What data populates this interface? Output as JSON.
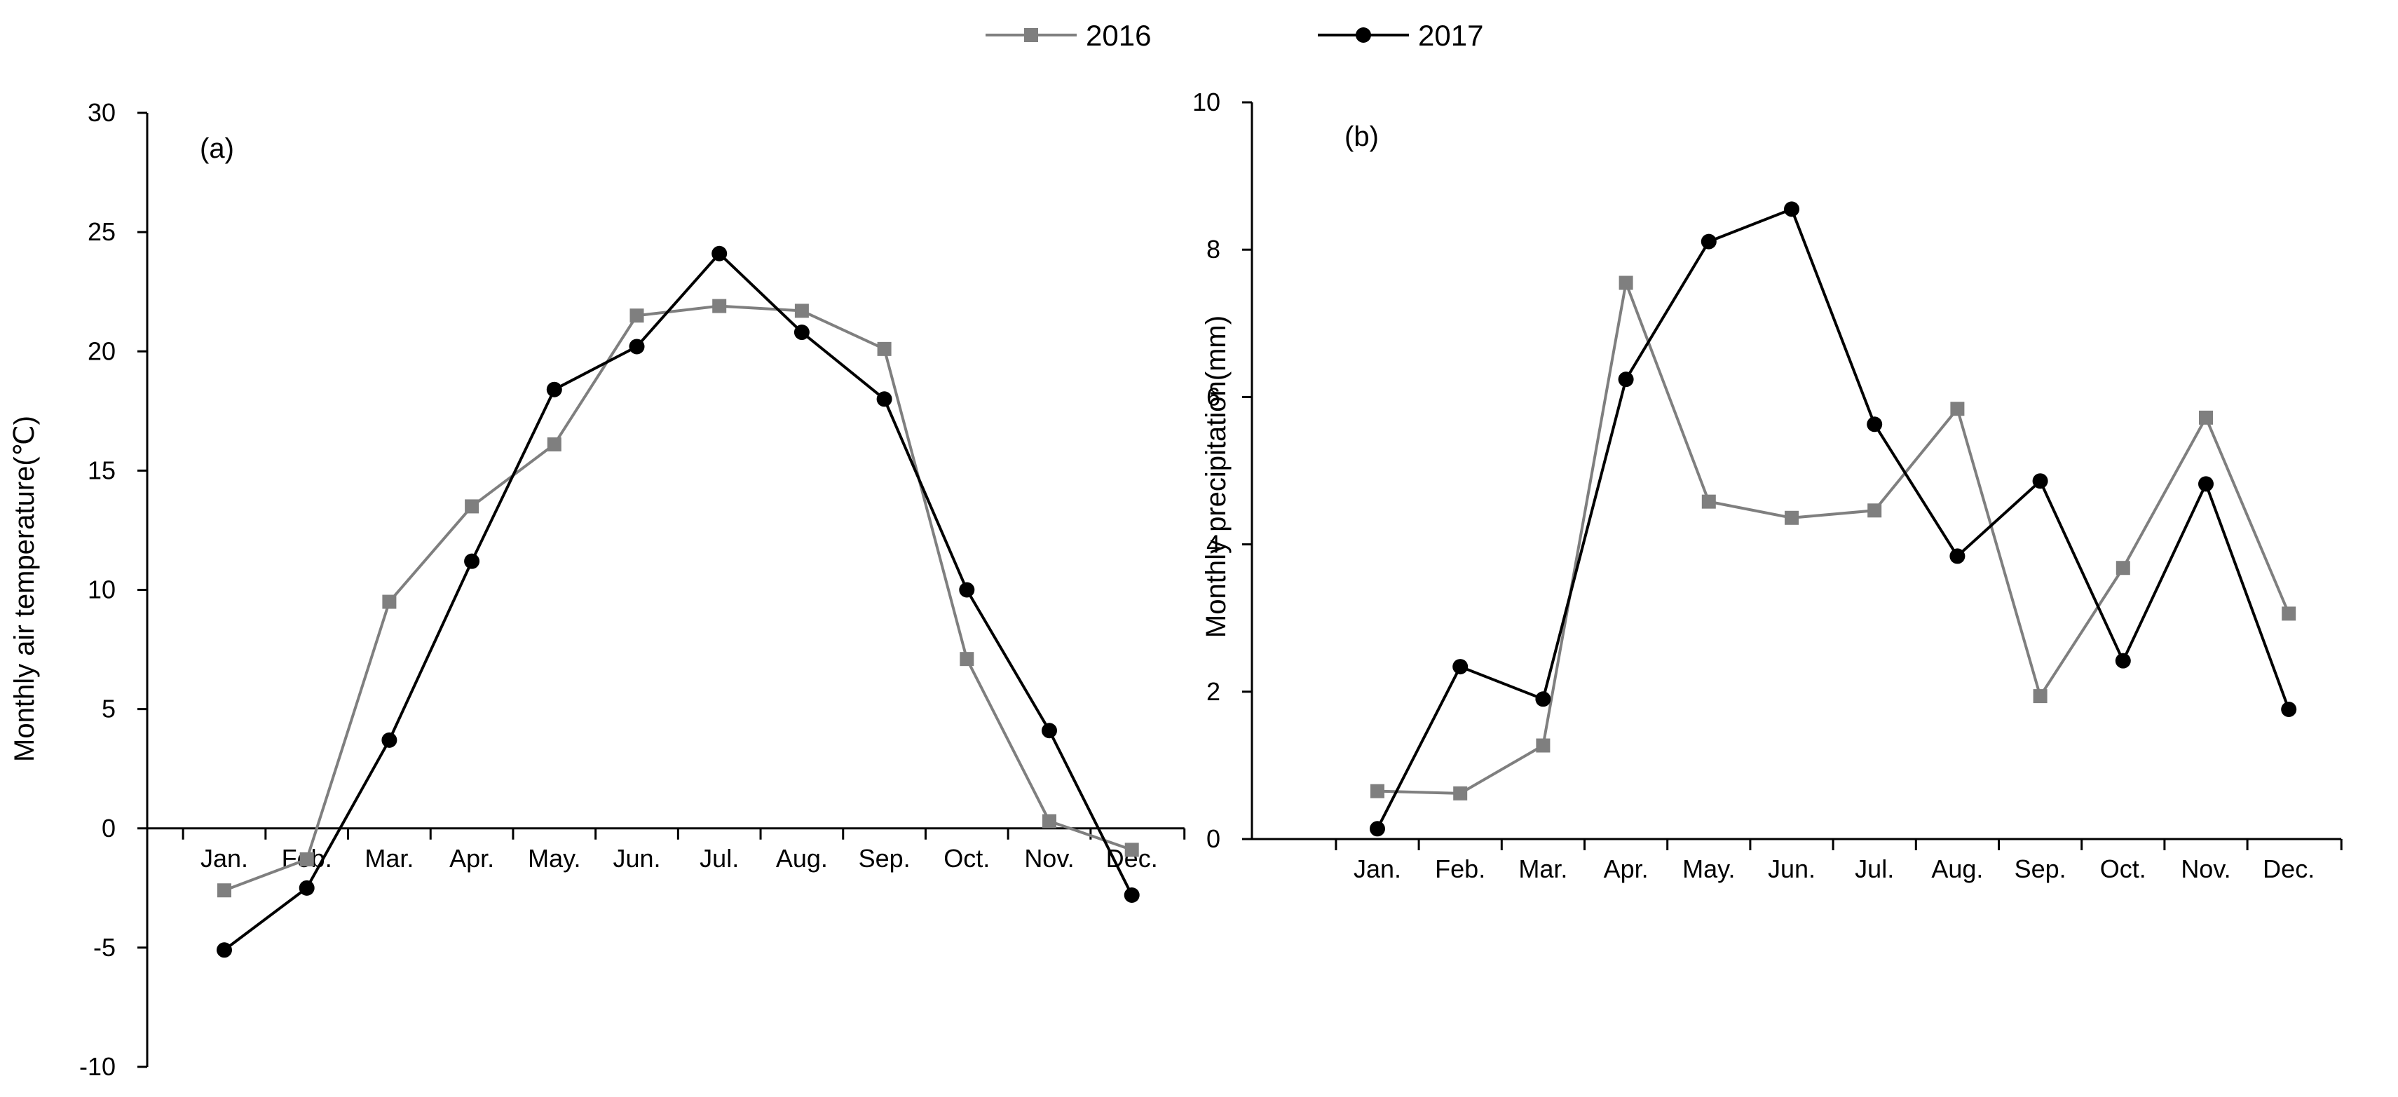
{
  "legend": {
    "position": "top-center",
    "entries": [
      {
        "label": "2016",
        "color": "#7f7f7f",
        "marker": "square"
      },
      {
        "label": "2017",
        "color": "#000000",
        "marker": "circle"
      }
    ]
  },
  "chart_data": [
    {
      "type": "line",
      "panel_label": "(a)",
      "title": "",
      "xlabel": "",
      "ylabel": "Monthly air temperature(℃)",
      "ylim": [
        -10,
        30
      ],
      "yticks": [
        -10,
        -5,
        0,
        5,
        10,
        15,
        20,
        25,
        30
      ],
      "grid": false,
      "categories": [
        "Jan.",
        "Feb.",
        "Mar.",
        "Apr.",
        "May.",
        "Jun.",
        "Jul.",
        "Aug.",
        "Sep.",
        "Oct.",
        "Nov.",
        "Dec."
      ],
      "series": [
        {
          "name": "2016",
          "color": "#7f7f7f",
          "marker": "square",
          "values": [
            -2.6,
            -1.3,
            9.5,
            13.5,
            16.1,
            21.5,
            21.9,
            21.7,
            20.1,
            7.1,
            0.3,
            -0.9
          ]
        },
        {
          "name": "2017",
          "color": "#000000",
          "marker": "circle",
          "values": [
            -5.1,
            -2.5,
            3.7,
            11.2,
            18.4,
            20.2,
            24.1,
            20.8,
            18.0,
            10.0,
            4.1,
            -2.8
          ]
        }
      ]
    },
    {
      "type": "line",
      "panel_label": "(b)",
      "title": "",
      "xlabel": "",
      "ylabel": "Monthly precipitation(mm)",
      "ylim": [
        0,
        10
      ],
      "yticks": [
        0,
        2,
        4,
        6,
        8,
        10
      ],
      "grid": false,
      "categories": [
        "Jan.",
        "Feb.",
        "Mar.",
        "Apr.",
        "May.",
        "Jun.",
        "Jul.",
        "Aug.",
        "Sep.",
        "Oct.",
        "Nov.",
        "Dec."
      ],
      "series": [
        {
          "name": "2016",
          "color": "#7f7f7f",
          "marker": "square",
          "values": [
            0.65,
            0.62,
            1.27,
            7.55,
            4.58,
            4.36,
            4.46,
            5.84,
            1.94,
            3.68,
            5.72,
            3.06
          ]
        },
        {
          "name": "2017",
          "color": "#000000",
          "marker": "circle",
          "values": [
            0.14,
            2.34,
            1.9,
            6.24,
            8.11,
            8.55,
            5.63,
            3.84,
            4.86,
            2.42,
            4.82,
            1.76
          ]
        }
      ]
    }
  ]
}
